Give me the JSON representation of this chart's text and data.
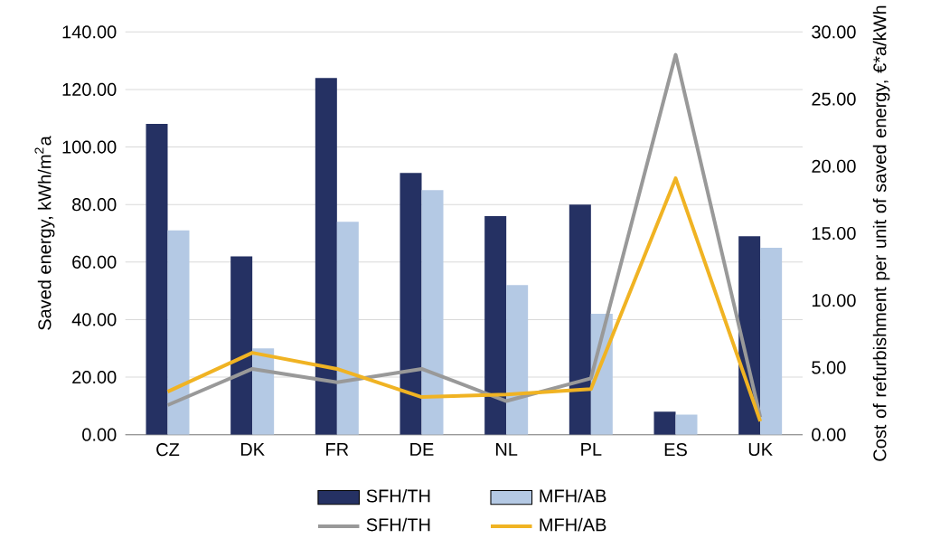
{
  "chart_data": {
    "type": "bar",
    "ylabel": "Saved energy, kWh/m$^{2}$a",
    "y2label": "Cost of refurbishment per unit of saved energy, €*a/kWh",
    "categories": [
      "CZ",
      "DK",
      "FR",
      "DE",
      "NL",
      "PL",
      "ES",
      "UK"
    ],
    "series": [
      {
        "name": "SFH/TH",
        "type": "bar",
        "color": "#253163",
        "values": [
          108,
          62,
          124,
          91,
          76,
          80,
          8,
          69
        ]
      },
      {
        "name": "MFH/AB",
        "type": "bar",
        "color": "#b4c9e4",
        "values": [
          71,
          30,
          74,
          85,
          52,
          42,
          7,
          65
        ]
      },
      {
        "name": "SFH/TH",
        "type": "line",
        "axis": "y2",
        "color": "#999999",
        "values": [
          2.2,
          4.9,
          3.9,
          4.9,
          2.5,
          4.2,
          28.3,
          1.3
        ]
      },
      {
        "name": "MFH/AB",
        "type": "line",
        "axis": "y2",
        "color": "#f0b323",
        "values": [
          3.2,
          6.1,
          4.9,
          2.8,
          3.0,
          3.4,
          19.1,
          1.0
        ]
      }
    ],
    "ylim": [
      0,
      140
    ],
    "yticks": [
      {
        "value": 0,
        "label": "0.00"
      },
      {
        "value": 20,
        "label": "20.00"
      },
      {
        "value": 40,
        "label": "40.00"
      },
      {
        "value": 60,
        "label": "60.00"
      },
      {
        "value": 80,
        "label": "80.00"
      },
      {
        "value": 100,
        "label": "100.00"
      },
      {
        "value": 120,
        "label": "120.00"
      },
      {
        "value": 140,
        "label": "140.00"
      }
    ],
    "y2lim": [
      0,
      30
    ],
    "y2ticks": [
      {
        "value": 0,
        "label": "0.00"
      },
      {
        "value": 5,
        "label": "5.00"
      },
      {
        "value": 10,
        "label": "10.00"
      },
      {
        "value": 15,
        "label": "15.00"
      },
      {
        "value": 20,
        "label": "20.00"
      },
      {
        "value": 25,
        "label": "25.00"
      },
      {
        "value": 30,
        "label": "30.00"
      }
    ],
    "grid": "y",
    "legend": "bottom"
  }
}
